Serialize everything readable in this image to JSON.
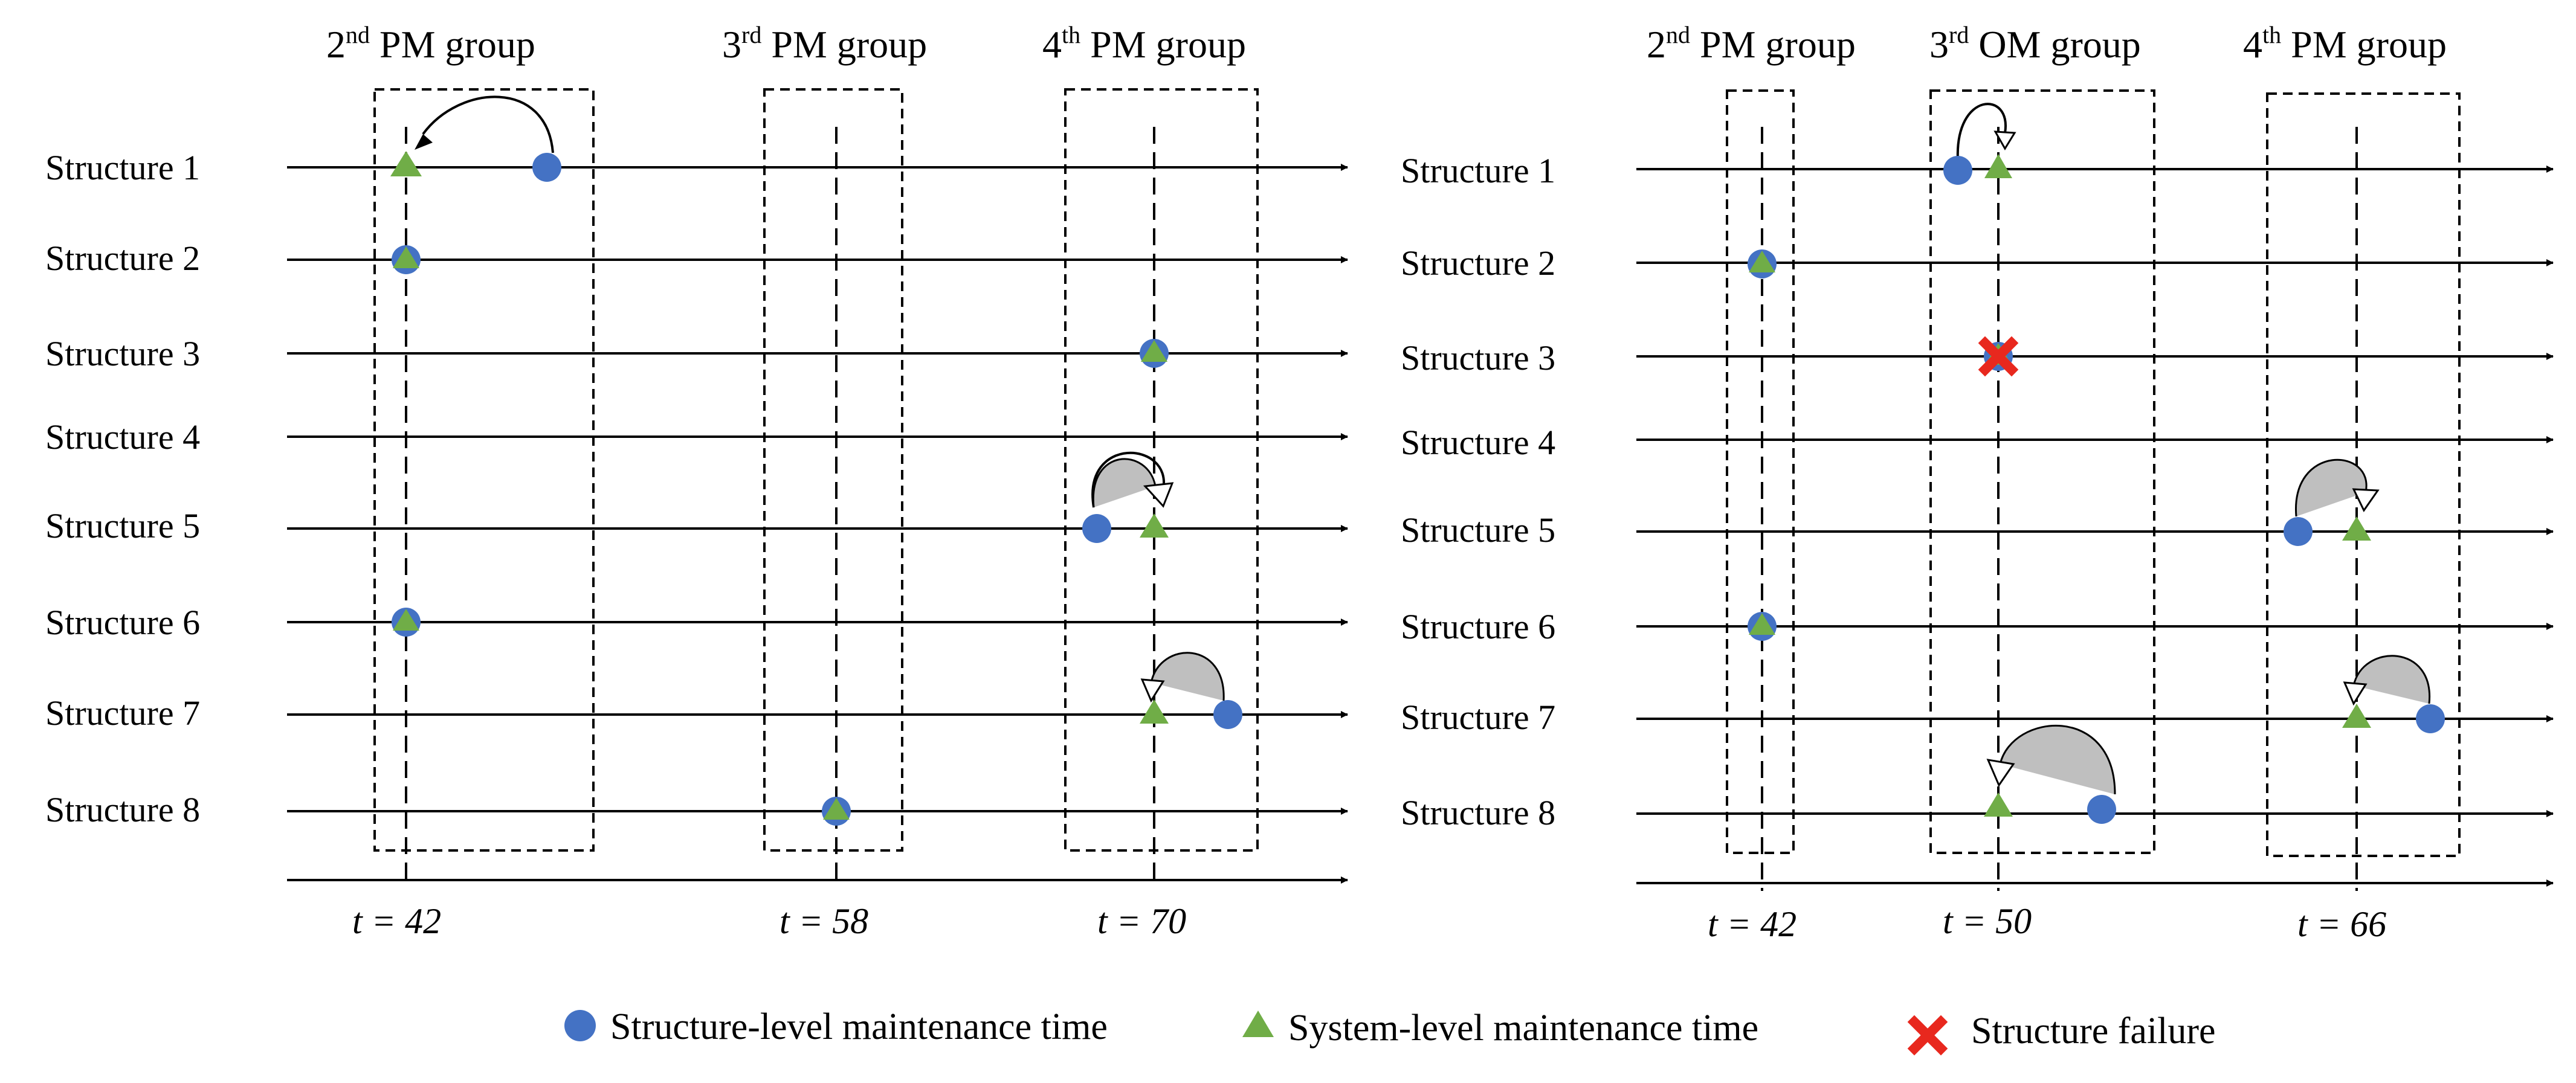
{
  "structures": [
    "Structure 1",
    "Structure 2",
    "Structure 3",
    "Structure 4",
    "Structure 5",
    "Structure 6",
    "Structure 7",
    "Structure 8"
  ],
  "panels": [
    {
      "groups": [
        {
          "ordinal": "2",
          "sup": "nd",
          "type": "PM group",
          "time_label": "t = 42"
        },
        {
          "ordinal": "3",
          "sup": "rd",
          "type": "PM group",
          "time_label": "t = 58"
        },
        {
          "ordinal": "4",
          "sup": "th",
          "type": "PM group",
          "time_label": "t = 70"
        }
      ]
    },
    {
      "groups": [
        {
          "ordinal": "2",
          "sup": "nd",
          "type": "PM group",
          "time_label": "t = 42"
        },
        {
          "ordinal": "3",
          "sup": "rd",
          "type": "OM group",
          "time_label": "t = 50"
        },
        {
          "ordinal": "4",
          "sup": "th",
          "type": "PM group",
          "time_label": "t = 66"
        }
      ]
    }
  ],
  "legend": {
    "structure_level": "Structure-level maintenance time",
    "system_level": "System-level maintenance time",
    "failure": "Structure failure"
  },
  "colors": {
    "structure_marker": "#4472C4",
    "system_marker": "#70AD47",
    "failure_marker": "#E8281E",
    "arrow_fill": "#BFBFBF"
  }
}
